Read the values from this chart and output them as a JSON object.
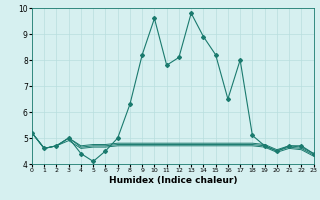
{
  "xlabel": "Humidex (Indice chaleur)",
  "x": [
    0,
    1,
    2,
    3,
    4,
    5,
    6,
    7,
    8,
    9,
    10,
    11,
    12,
    13,
    14,
    15,
    16,
    17,
    18,
    19,
    20,
    21,
    22,
    23
  ],
  "y_main": [
    5.2,
    4.6,
    4.7,
    5.0,
    4.4,
    4.1,
    4.5,
    5.0,
    6.3,
    8.2,
    9.6,
    7.8,
    8.1,
    9.8,
    8.9,
    8.2,
    6.5,
    8.0,
    5.1,
    4.7,
    4.5,
    4.7,
    4.7,
    4.4
  ],
  "y_line1": [
    5.2,
    4.6,
    4.7,
    5.0,
    4.7,
    4.75,
    4.75,
    4.8,
    4.8,
    4.8,
    4.8,
    4.8,
    4.8,
    4.8,
    4.8,
    4.8,
    4.8,
    4.8,
    4.8,
    4.75,
    4.55,
    4.7,
    4.65,
    4.4
  ],
  "y_line2": [
    5.2,
    4.6,
    4.7,
    5.0,
    4.65,
    4.7,
    4.7,
    4.75,
    4.75,
    4.75,
    4.75,
    4.75,
    4.75,
    4.75,
    4.75,
    4.75,
    4.75,
    4.75,
    4.75,
    4.7,
    4.5,
    4.65,
    4.6,
    4.35
  ],
  "y_line3": [
    5.2,
    4.6,
    4.7,
    4.9,
    4.6,
    4.65,
    4.65,
    4.7,
    4.7,
    4.7,
    4.7,
    4.7,
    4.7,
    4.7,
    4.7,
    4.7,
    4.7,
    4.7,
    4.7,
    4.65,
    4.45,
    4.6,
    4.55,
    4.3
  ],
  "line_color": "#1a7a6e",
  "bg_color": "#d6f0f0",
  "grid_color": "#b8dede",
  "xlim": [
    0,
    23
  ],
  "ylim": [
    4.0,
    10.0
  ],
  "yticks": [
    4,
    5,
    6,
    7,
    8,
    9,
    10
  ],
  "xtick_labels": [
    "0",
    "1",
    "2",
    "3",
    "4",
    "5",
    "6",
    "7",
    "8",
    "9",
    "10",
    "11",
    "12",
    "13",
    "14",
    "15",
    "16",
    "17",
    "18",
    "19",
    "20",
    "21",
    "22",
    "23"
  ]
}
